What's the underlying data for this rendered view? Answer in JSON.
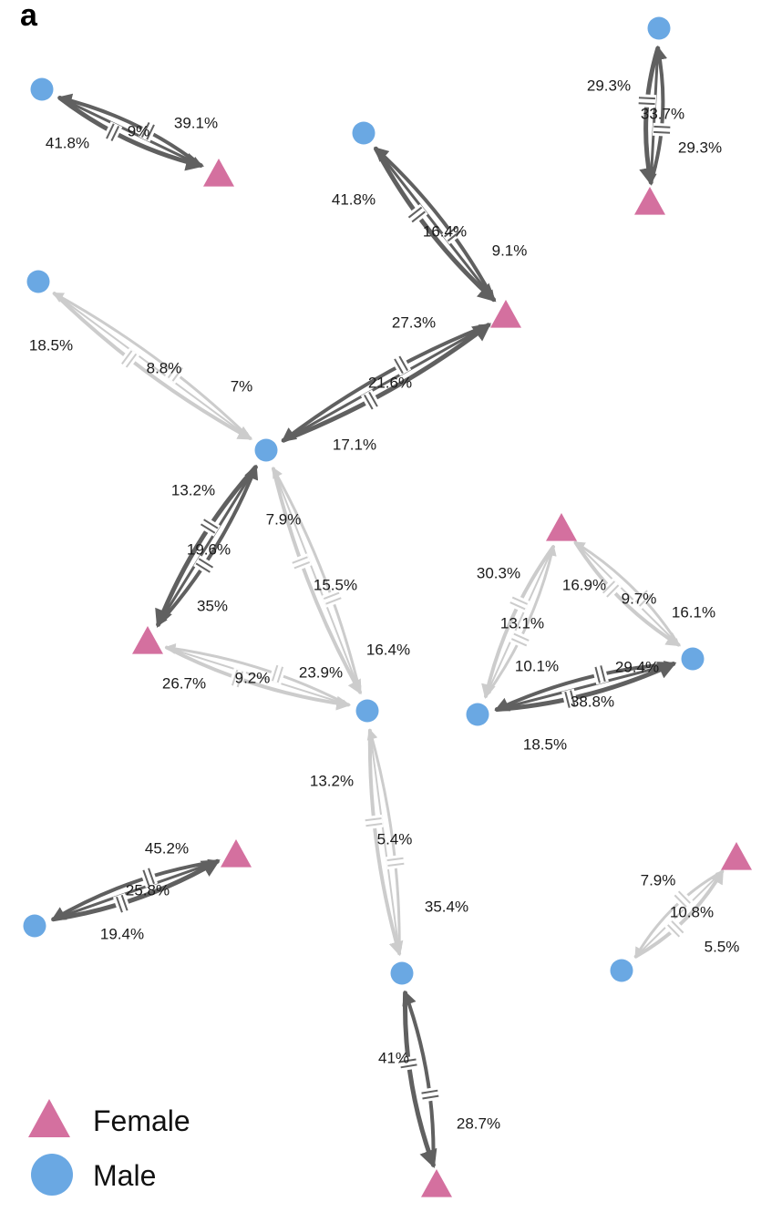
{
  "panel_label": "a",
  "legend": {
    "female": "Female",
    "male": "Male"
  },
  "colors": {
    "female": "#d4709f",
    "male": "#6aa8e3",
    "strong_edge": "#606060",
    "weak_edge": "#cccccc"
  },
  "nodes": [
    {
      "id": "m1",
      "sex": "male"
    },
    {
      "id": "f1",
      "sex": "female"
    },
    {
      "id": "m2",
      "sex": "male"
    },
    {
      "id": "f2",
      "sex": "female"
    },
    {
      "id": "m3",
      "sex": "male"
    },
    {
      "id": "f3",
      "sex": "female"
    },
    {
      "id": "m4",
      "sex": "male"
    },
    {
      "id": "m5",
      "sex": "male"
    },
    {
      "id": "f4",
      "sex": "female"
    },
    {
      "id": "m6",
      "sex": "male"
    },
    {
      "id": "f5",
      "sex": "female"
    },
    {
      "id": "m7",
      "sex": "male"
    },
    {
      "id": "m8",
      "sex": "male"
    },
    {
      "id": "m9",
      "sex": "male"
    },
    {
      "id": "f6",
      "sex": "female"
    },
    {
      "id": "m10",
      "sex": "male"
    },
    {
      "id": "f7",
      "sex": "female"
    },
    {
      "id": "m11",
      "sex": "male"
    },
    {
      "id": "f8",
      "sex": "female"
    },
    {
      "id": "m12",
      "sex": "male"
    }
  ],
  "edges": [
    {
      "a": "m1",
      "b": "f1",
      "ab": "39.1%",
      "ba": "41.8%",
      "mutual": "9%",
      "style": "strong"
    },
    {
      "a": "m2",
      "b": "f2",
      "ab": "29.3%",
      "ba": "29.3%",
      "mutual": "33.7%",
      "style": "strong"
    },
    {
      "a": "m3",
      "b": "f3",
      "ab": "9.1%",
      "ba": "41.8%",
      "mutual": "16.4%",
      "style": "strong"
    },
    {
      "a": "m5",
      "b": "f3",
      "ab": "27.3%",
      "ba": "17.1%",
      "mutual": "21.6%",
      "style": "strong"
    },
    {
      "a": "m4",
      "b": "m5",
      "ab": "7%",
      "ba": "18.5%",
      "mutual": "8.8%",
      "style": "weak"
    },
    {
      "a": "m5",
      "b": "f4",
      "ab": "35%",
      "ba": "13.2%",
      "mutual": "19.6%",
      "style": "strong"
    },
    {
      "a": "m5",
      "b": "m6",
      "ab": "16.4%",
      "ba": "7.9%",
      "mutual": "15.5%",
      "style": "weak"
    },
    {
      "a": "f4",
      "b": "m6",
      "ab": "23.9%",
      "ba": "26.7%",
      "mutual": "9.2%",
      "style": "weak"
    },
    {
      "a": "f5",
      "b": "m7",
      "ab": "16.1%",
      "ba": "16.9%",
      "mutual": "9.7%",
      "style": "weak"
    },
    {
      "a": "f5",
      "b": "m8",
      "ab": "10.1%",
      "ba": "30.3%",
      "mutual": "13.1%",
      "style": "weak"
    },
    {
      "a": "m8",
      "b": "m7",
      "ab": "29.4%",
      "ba": "18.5%",
      "mutual": "38.8%",
      "style": "strong"
    },
    {
      "a": "m6",
      "b": "m10",
      "ab": "35.4%",
      "ba": "13.2%",
      "mutual": "5.4%",
      "style": "weak"
    },
    {
      "a": "m9",
      "b": "f6",
      "ab": "45.2%",
      "ba": "19.4%",
      "mutual": "25.8%",
      "style": "strong"
    },
    {
      "a": "m11",
      "b": "f7",
      "ab": "5.5%",
      "ba": "7.9%",
      "mutual": "10.8%",
      "style": "weak"
    },
    {
      "a": "m10",
      "b": "f8",
      "ab": "28.7%",
      "ba": "41%",
      "mutual": "",
      "style": "strong"
    }
  ]
}
